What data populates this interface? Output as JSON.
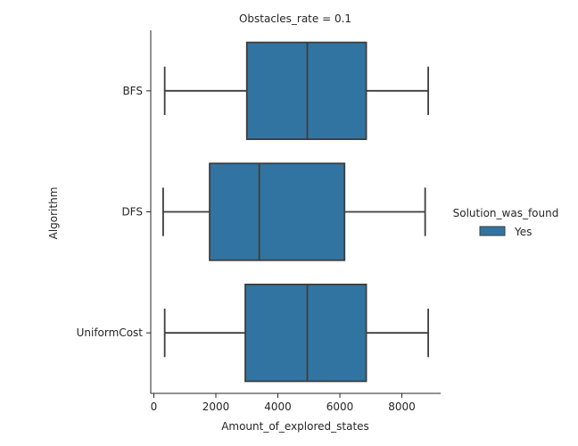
{
  "chart_data": {
    "type": "boxplot",
    "orientation": "horizontal",
    "title": "Obstacles_rate = 0.1",
    "xlabel": "Amount_of_explored_states",
    "ylabel": "Algorithm",
    "xlim": [
      -100,
      9250
    ],
    "xticks": [
      0,
      2000,
      4000,
      6000,
      8000
    ],
    "xtick_labels": [
      "0",
      "2000",
      "4000",
      "6000",
      "8000"
    ],
    "categories": [
      "BFS",
      "DFS",
      "UniformCost"
    ],
    "boxes": [
      {
        "category": "BFS",
        "whislo": 350,
        "q1": 3000,
        "med": 4950,
        "q3": 6850,
        "whishi": 8850
      },
      {
        "category": "DFS",
        "whislo": 300,
        "q1": 1800,
        "med": 3400,
        "q3": 6150,
        "whishi": 8750
      },
      {
        "category": "UniformCost",
        "whislo": 350,
        "q1": 2950,
        "med": 4950,
        "q3": 6850,
        "whishi": 8850
      }
    ],
    "legend": {
      "title": "Solution_was_found",
      "entries": [
        {
          "label": "Yes",
          "color": "#3274a1"
        }
      ],
      "placement": "right"
    },
    "box_color": "#3274a1",
    "line_color": "#3d3d3d",
    "grid": false
  }
}
